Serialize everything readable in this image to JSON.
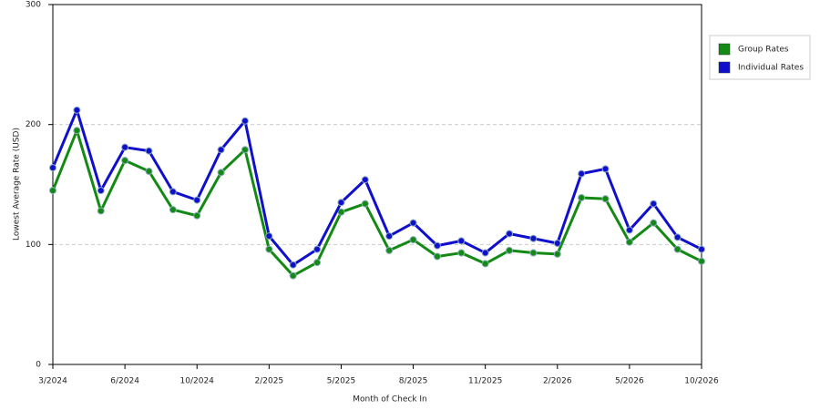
{
  "chart_data": {
    "type": "line",
    "x_label": "Month of Check In",
    "y_label": "Lowest Average Rate (USD)",
    "categories": [
      "3/2024",
      null,
      null,
      "6/2024",
      null,
      null,
      "10/2024",
      null,
      null,
      "2/2025",
      null,
      null,
      "5/2025",
      null,
      null,
      "8/2025",
      null,
      null,
      "11/2025",
      null,
      null,
      "2/2026",
      null,
      null,
      "5/2026",
      null,
      null,
      "10/2026"
    ],
    "series": [
      {
        "name": "Group Rates",
        "color": "#138a13",
        "values": [
          145,
          195,
          128,
          170,
          161,
          129,
          124,
          160,
          179,
          96,
          74,
          85,
          127,
          134,
          95,
          104,
          90,
          93,
          84,
          95,
          93,
          92,
          139,
          138,
          102,
          118,
          96,
          86
        ]
      },
      {
        "name": "Individual Rates",
        "color": "#1010cc",
        "values": [
          164,
          212,
          145,
          181,
          178,
          144,
          137,
          179,
          203,
          107,
          83,
          96,
          135,
          154,
          107,
          118,
          99,
          103,
          93,
          109,
          105,
          101,
          159,
          163,
          112,
          134,
          106,
          96
        ]
      }
    ],
    "ylim": [
      0,
      300
    ],
    "yticks": [
      0,
      100,
      200,
      300
    ],
    "grid": true,
    "legend": "right"
  }
}
